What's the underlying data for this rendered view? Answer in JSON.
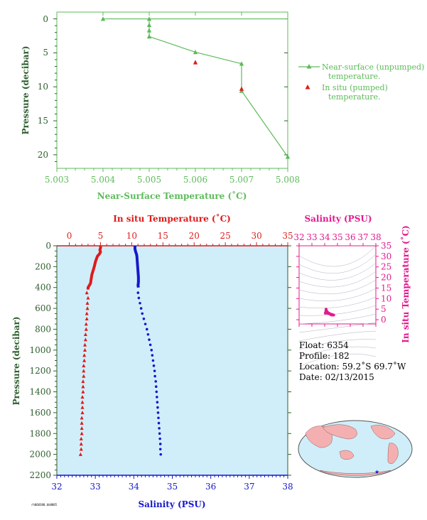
{
  "chart_data": [
    {
      "type": "line",
      "xlabel": "Near-Surface Temperature (˚C)",
      "ylabel": "Pressure (decibar)",
      "xlim": [
        5.003,
        5.008
      ],
      "ylim": [
        22,
        -1
      ],
      "xticks": [
        "5.003",
        "5.004",
        "5.005",
        "5.006",
        "5.007",
        "5.008"
      ],
      "yticks": [
        "0",
        "5",
        "10",
        "15",
        "20"
      ],
      "legend_position": "right",
      "series": [
        {
          "name": "Near-surface (unpumped) temperature.",
          "color": "#5dbb5a",
          "marker": "triangle",
          "points": [
            [
              5.008,
              0
            ],
            [
              5.004,
              0
            ],
            [
              5.005,
              0
            ],
            [
              5.005,
              0.9
            ],
            [
              5.005,
              1.7
            ],
            [
              5.005,
              2.6
            ],
            [
              5.006,
              4.9
            ],
            [
              5.007,
              6.6
            ],
            [
              5.007,
              10.6
            ],
            [
              5.008,
              20.3
            ]
          ]
        },
        {
          "name": "In situ (pumped) temperature.",
          "color": "#dd1c1c",
          "marker": "triangle",
          "points": [
            [
              5.006,
              6.4
            ],
            [
              5.007,
              10.3
            ]
          ]
        }
      ]
    },
    {
      "type": "line",
      "title_top": "In situ Temperature (˚C)",
      "xlabel": "Salinity (PSU)",
      "ylabel": "Pressure (decibar)",
      "temp_lim": [
        -2,
        35
      ],
      "sal_lim": [
        32,
        38
      ],
      "pressure_lim": [
        0,
        2200
      ],
      "temp_ticks": [
        "0",
        "5",
        "10",
        "15",
        "20",
        "25",
        "30",
        "35"
      ],
      "sal_ticks": [
        "32",
        "33",
        "34",
        "35",
        "36",
        "37",
        "38"
      ],
      "pressure_ticks": [
        "0",
        "200",
        "400",
        "600",
        "800",
        "1000",
        "1200",
        "1400",
        "1600",
        "1800",
        "2000",
        "2200"
      ],
      "background": "#d0eef9",
      "series": [
        {
          "name": "temperature",
          "color": "#dd1c1c",
          "axis": "temperature",
          "upper": [
            [
              5.0,
              0
            ],
            [
              5.0,
              20
            ],
            [
              4.9,
              40
            ],
            [
              5.0,
              60
            ],
            [
              4.8,
              80
            ],
            [
              4.5,
              100
            ],
            [
              4.2,
              150
            ],
            [
              4.0,
              200
            ],
            [
              3.8,
              240
            ],
            [
              3.6,
              280
            ],
            [
              3.5,
              320
            ],
            [
              3.4,
              360
            ],
            [
              3.0,
              400
            ],
            [
              3.0,
              420
            ]
          ],
          "lower": [
            [
              2.8,
              450
            ],
            [
              3.0,
              500
            ],
            [
              2.9,
              550
            ],
            [
              2.9,
              600
            ],
            [
              2.8,
              650
            ],
            [
              2.8,
              700
            ],
            [
              2.7,
              750
            ],
            [
              2.7,
              800
            ],
            [
              2.6,
              850
            ],
            [
              2.6,
              900
            ],
            [
              2.5,
              950
            ],
            [
              2.5,
              1000
            ],
            [
              2.4,
              1050
            ],
            [
              2.4,
              1100
            ],
            [
              2.3,
              1150
            ],
            [
              2.3,
              1200
            ],
            [
              2.3,
              1250
            ],
            [
              2.2,
              1300
            ],
            [
              2.2,
              1350
            ],
            [
              2.2,
              1400
            ],
            [
              2.1,
              1450
            ],
            [
              2.1,
              1500
            ],
            [
              2.1,
              1550
            ],
            [
              2.1,
              1600
            ],
            [
              2.0,
              1650
            ],
            [
              2.0,
              1700
            ],
            [
              2.0,
              1750
            ],
            [
              2.0,
              1800
            ],
            [
              1.9,
              1850
            ],
            [
              1.9,
              1900
            ],
            [
              1.9,
              1950
            ],
            [
              1.8,
              2000
            ]
          ]
        },
        {
          "name": "salinity",
          "color": "#1518cc",
          "axis": "salinity",
          "upper": [
            [
              34.03,
              0
            ],
            [
              34.03,
              30
            ],
            [
              34.05,
              60
            ],
            [
              34.07,
              80
            ],
            [
              34.08,
              100
            ],
            [
              34.09,
              150
            ],
            [
              34.1,
              200
            ],
            [
              34.11,
              250
            ],
            [
              34.12,
              300
            ],
            [
              34.12,
              350
            ],
            [
              34.11,
              380
            ],
            [
              34.12,
              400
            ]
          ],
          "lower": [
            [
              34.11,
              450
            ],
            [
              34.13,
              500
            ],
            [
              34.16,
              550
            ],
            [
              34.19,
              600
            ],
            [
              34.22,
              650
            ],
            [
              34.26,
              700
            ],
            [
              34.3,
              750
            ],
            [
              34.34,
              800
            ],
            [
              34.37,
              850
            ],
            [
              34.4,
              900
            ],
            [
              34.43,
              950
            ],
            [
              34.46,
              1000
            ],
            [
              34.48,
              1050
            ],
            [
              34.5,
              1100
            ],
            [
              34.52,
              1150
            ],
            [
              34.54,
              1200
            ],
            [
              34.55,
              1250
            ],
            [
              34.57,
              1300
            ],
            [
              34.58,
              1350
            ],
            [
              34.59,
              1400
            ],
            [
              34.6,
              1450
            ],
            [
              34.61,
              1500
            ],
            [
              34.62,
              1550
            ],
            [
              34.63,
              1600
            ],
            [
              34.64,
              1650
            ],
            [
              34.65,
              1700
            ],
            [
              34.66,
              1750
            ],
            [
              34.67,
              1800
            ],
            [
              34.68,
              1850
            ],
            [
              34.69,
              1900
            ],
            [
              34.69,
              1950
            ],
            [
              34.7,
              2000
            ]
          ]
        }
      ]
    },
    {
      "type": "scatter",
      "xlabel": "Salinity (PSU)",
      "ylabel": "In situ Temperature (˚C)",
      "xlim": [
        32,
        38
      ],
      "ylim": [
        -2,
        35
      ],
      "xticks": [
        "32",
        "33",
        "34",
        "35",
        "36",
        "37",
        "38"
      ],
      "yticks": [
        "0",
        "5",
        "10",
        "15",
        "20",
        "25",
        "30",
        "35"
      ],
      "color": "#e4198f",
      "points": [
        [
          34.05,
          3.1
        ],
        [
          34.08,
          3.6
        ],
        [
          34.1,
          4.1
        ],
        [
          34.12,
          4.6
        ],
        [
          34.11,
          5.0
        ],
        [
          34.15,
          3.2
        ],
        [
          34.2,
          3.1
        ],
        [
          34.3,
          2.9
        ],
        [
          34.4,
          2.8
        ],
        [
          34.5,
          2.6
        ],
        [
          34.6,
          2.4
        ],
        [
          34.7,
          2.2
        ],
        [
          34.55,
          2.2
        ],
        [
          34.45,
          2.5
        ],
        [
          34.35,
          3.0
        ],
        [
          34.25,
          3.4
        ],
        [
          34.18,
          3.9
        ]
      ]
    }
  ],
  "float_info": {
    "float": "Float:  6354",
    "profile": "Profile:  182",
    "location": "Location:  59.2˚S  69.7˚W",
    "date": "Date:  02/13/2015"
  },
  "credit_text": "rh060300.bb0005"
}
